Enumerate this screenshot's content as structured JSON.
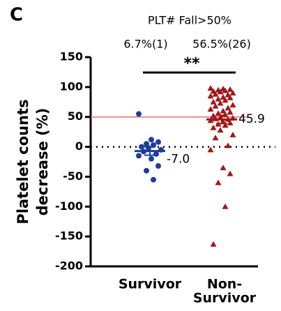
{
  "chart_data": {
    "type": "scatter",
    "panel_label": "C",
    "title": "PLT# Fall>50%",
    "annotations": [
      "6.7%(1)",
      "56.5%(26)"
    ],
    "significance": "**",
    "y_label_lines": [
      "Platelet counts",
      "decrease (%)"
    ],
    "categories": [
      [
        "Survivor"
      ],
      [
        "Non-",
        "Survivor"
      ]
    ],
    "series": [
      {
        "name": "Survivor",
        "color": "#1f3c9c",
        "marker": "circle",
        "values": [
          55,
          12,
          8,
          5,
          3,
          0,
          -2,
          -5,
          -8,
          -12,
          -15,
          -20,
          -32,
          -40,
          -55
        ],
        "mean": -7.0,
        "mean_label": "-7.0",
        "sem": 7
      },
      {
        "name": "Non-Survivor",
        "color": "#a01818",
        "marker": "triangle",
        "values": [
          98,
          97,
          96,
          95,
          94,
          93,
          92,
          90,
          88,
          87,
          85,
          83,
          82,
          80,
          78,
          75,
          73,
          70,
          68,
          65,
          63,
          60,
          58,
          56,
          54,
          52,
          49,
          48,
          47,
          46,
          44,
          42,
          40,
          38,
          36,
          32,
          28,
          20,
          15,
          2,
          -5,
          -35,
          -45,
          -60,
          -100,
          -163
        ],
        "mean": 45.9,
        "mean_label": "45.9",
        "sem": 7
      }
    ],
    "reference_line": 50,
    "reference_color": "#e07070",
    "zero_line": 0,
    "ylim": [
      -200,
      150
    ],
    "yticks": [
      -200,
      -150,
      -100,
      -50,
      0,
      50,
      100,
      150
    ]
  }
}
